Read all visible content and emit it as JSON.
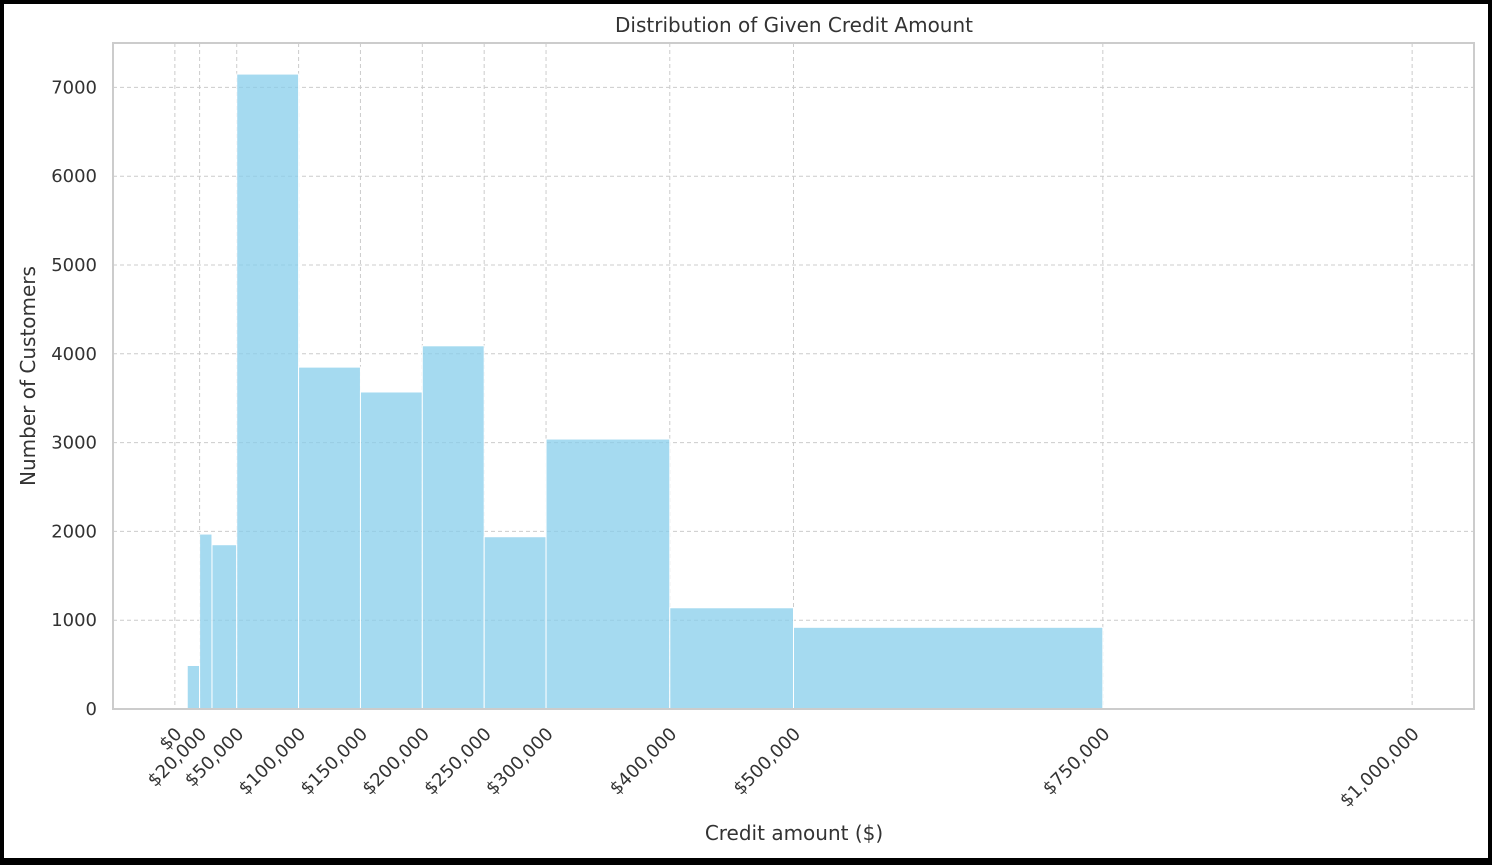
{
  "chart_data": {
    "type": "bar",
    "title": "Distribution of Given Credit Amount",
    "xlabel": "Credit amount ($)",
    "ylabel": "Number of Customers",
    "xlim": [
      -50000,
      1050000
    ],
    "ylim": [
      0,
      7500
    ],
    "x_ticks": [
      0,
      20000,
      50000,
      100000,
      150000,
      200000,
      250000,
      300000,
      400000,
      500000,
      750000,
      1000000
    ],
    "x_tick_labels": [
      "$0",
      "$20,000",
      "$50,000",
      "$100,000",
      "$150,000",
      "$200,000",
      "$250,000",
      "$300,000",
      "$400,000",
      "$500,000",
      "$750,000",
      "$1,000,000"
    ],
    "y_ticks": [
      0,
      1000,
      2000,
      3000,
      4000,
      5000,
      6000,
      7000
    ],
    "y_tick_labels": [
      "0",
      "1000",
      "2000",
      "3000",
      "4000",
      "5000",
      "6000",
      "7000"
    ],
    "bins": [
      {
        "start": 0,
        "end": 10000,
        "value": 0
      },
      {
        "start": 10000,
        "end": 20000,
        "value": 490
      },
      {
        "start": 20000,
        "end": 30000,
        "value": 1970
      },
      {
        "start": 30000,
        "end": 50000,
        "value": 1850
      },
      {
        "start": 50000,
        "end": 100000,
        "value": 7150
      },
      {
        "start": 100000,
        "end": 150000,
        "value": 3850
      },
      {
        "start": 150000,
        "end": 200000,
        "value": 3570
      },
      {
        "start": 200000,
        "end": 250000,
        "value": 4090
      },
      {
        "start": 250000,
        "end": 300000,
        "value": 1940
      },
      {
        "start": 300000,
        "end": 400000,
        "value": 3040
      },
      {
        "start": 400000,
        "end": 500000,
        "value": 1140
      },
      {
        "start": 500000,
        "end": 750000,
        "value": 920
      },
      {
        "start": 750000,
        "end": 1000000,
        "value": 5
      }
    ],
    "grid": true,
    "colors": {
      "bar": "#87CEEB",
      "bar_edge": "#ffffff",
      "grid": "#cccccc",
      "spine": "#cccccc",
      "text": "#333333"
    }
  }
}
